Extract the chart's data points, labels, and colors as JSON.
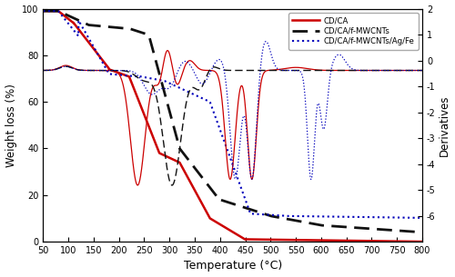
{
  "title": "",
  "xlabel": "Temperature (°C)",
  "ylabel_left": "Weight loss (%)",
  "ylabel_right": "Derivatives",
  "xlim": [
    50,
    800
  ],
  "ylim_left": [
    0,
    100
  ],
  "ylim_right": [
    -7,
    2
  ],
  "xticks": [
    50,
    100,
    150,
    200,
    250,
    300,
    350,
    400,
    450,
    500,
    550,
    600,
    650,
    700,
    750,
    800
  ],
  "yticks_left": [
    0,
    20,
    40,
    60,
    80,
    100
  ],
  "yticks_right": [
    -6,
    -5,
    -4,
    -3,
    -2,
    -1,
    0,
    1,
    2
  ],
  "legend": [
    "CD/CA",
    "CD/CA/f-MWCNTs",
    "CD/CA/f-MWCNTs/Ag/Fe"
  ],
  "line_colors": [
    "#cc0000",
    "#111111",
    "#0000bb"
  ],
  "background_color": "#ffffff",
  "dtg_baseline": 73.5,
  "dtg_scale": 8.5
}
